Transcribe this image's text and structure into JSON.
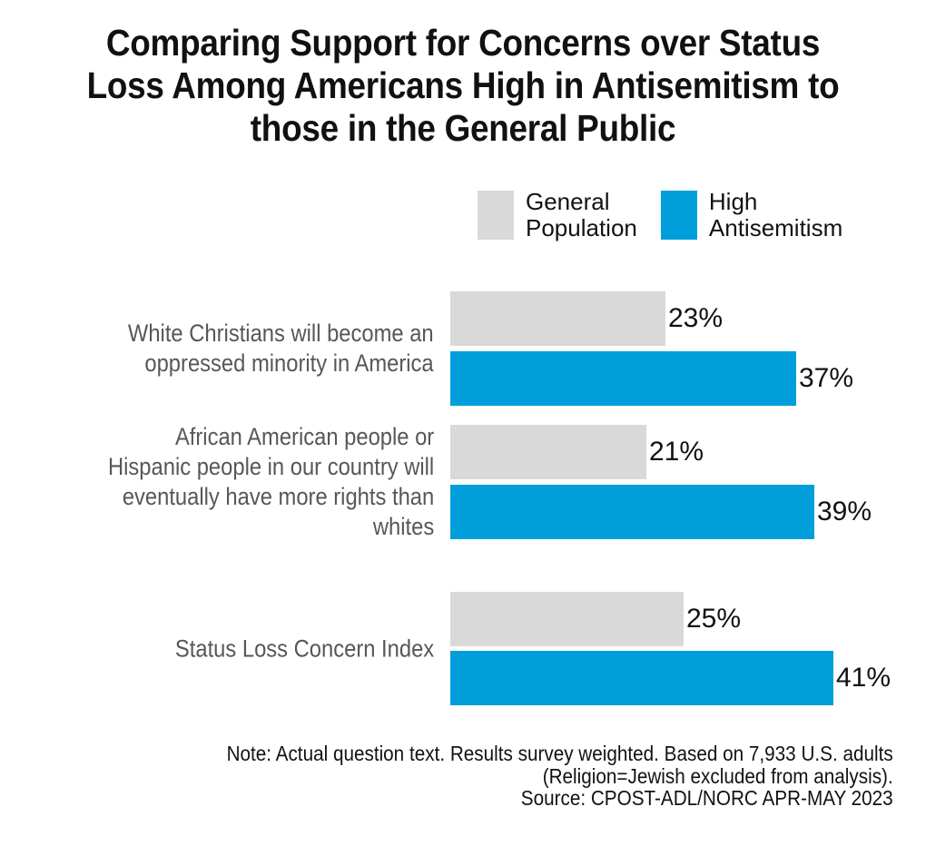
{
  "title": "Comparing Support for Concerns over Status Loss Among Americans High in Antisemitism to those in the General Public",
  "title_lines": [
    "Comparing Support for Concerns over Status",
    "Loss Among Americans High in Antisemitism to",
    "those in the General Public"
  ],
  "legend": {
    "items": [
      {
        "label": "General Population",
        "label_lines": [
          "General",
          "Population"
        ],
        "color": "#D9D9D9"
      },
      {
        "label": "High Antisemitism",
        "label_lines": [
          "High",
          "Antisemitism"
        ],
        "color": "#009EDB"
      }
    ]
  },
  "chart_data": {
    "type": "bar",
    "orientation": "horizontal",
    "value_unit": "%",
    "value_axis_range": [
      0,
      45
    ],
    "grid": false,
    "axes_shown": false,
    "legend_position": "top",
    "categories": [
      "White Christians will become an oppressed minority in America",
      "African American people or Hispanic people in our country will eventually have more rights than whites",
      "Status Loss Concern Index"
    ],
    "categories_display": [
      [
        "White Christians will become an",
        "oppressed minority in America"
      ],
      [
        "African American people or",
        "Hispanic people in our country will",
        "eventually have more rights than",
        "whites"
      ],
      [
        "Status Loss Concern Index"
      ]
    ],
    "series": [
      {
        "name": "General Population",
        "color": "#D9D9D9",
        "values": [
          23,
          21,
          25
        ],
        "labels": [
          "23%",
          "21%",
          "25%"
        ]
      },
      {
        "name": "High Antisemitism",
        "color": "#009EDB",
        "values": [
          37,
          39,
          41
        ],
        "labels": [
          "37%",
          "39%",
          "41%"
        ]
      }
    ]
  },
  "note": "Note: Actual question text. Results survey weighted. Based on 7,933 U.S. adults (Religion=Jewish excluded from analysis). Source: CPOST-ADL/NORC APR-MAY 2023",
  "note_lines": [
    "Note: Actual question text. Results survey weighted. Based on 7,933 U.S. adults",
    "(Religion=Jewish excluded from analysis).",
    "Source: CPOST-ADL/NORC APR-MAY 2023"
  ],
  "colors": {
    "general_population": "#D9D9D9",
    "high_antisemitism": "#009EDB",
    "category_label": "#56575B",
    "text": "#121212",
    "background": "#FFFFFF"
  }
}
